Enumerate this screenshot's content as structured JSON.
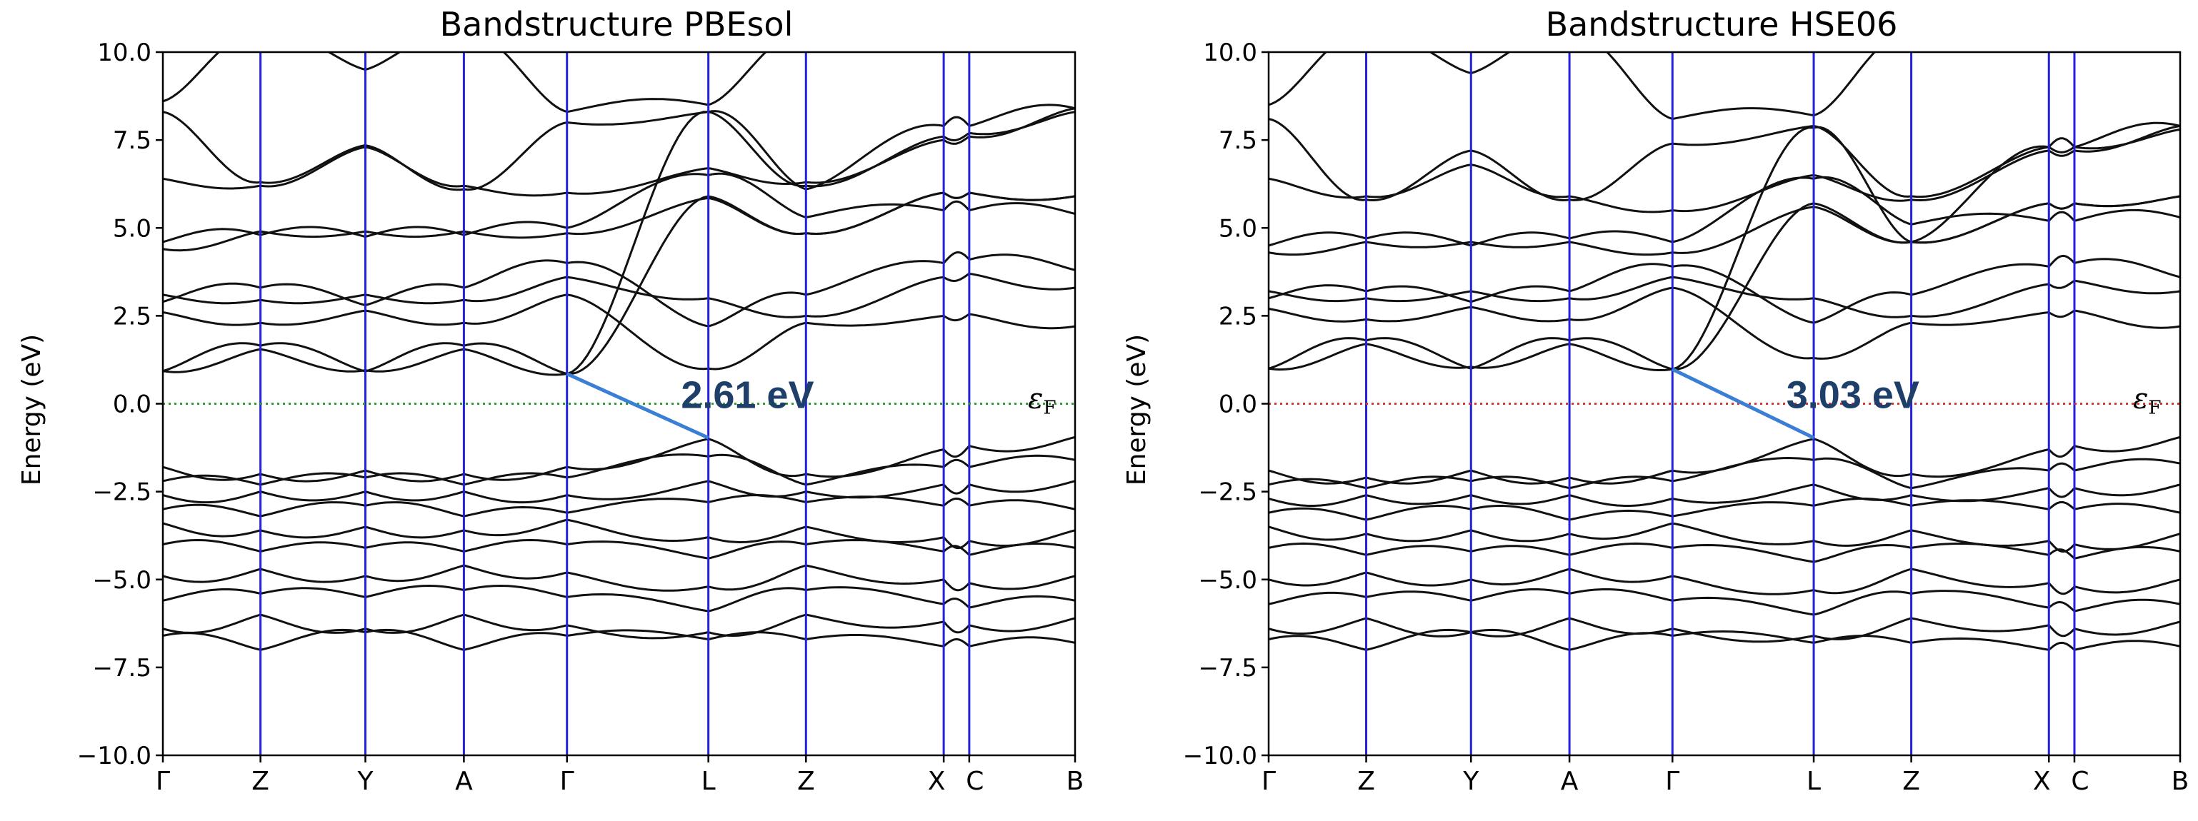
{
  "chart_data": [
    {
      "type": "line",
      "title": "Bandstructure PBEsol",
      "xlabel": "",
      "ylabel": "Energy (eV)",
      "ylim": [
        -10.0,
        10.0
      ],
      "yticks": [
        "−10.0",
        "−7.5",
        "−5.0",
        "−2.5",
        "0.0",
        "2.5",
        "5.0",
        "7.5",
        "10.0"
      ],
      "ytick_values": [
        -10,
        -7.5,
        -5,
        -2.5,
        0,
        2.5,
        5,
        7.5,
        10
      ],
      "kpath": [
        "Γ",
        "Z",
        "Y",
        "A",
        "Γ",
        "L",
        "Z",
        "X",
        "C",
        "B"
      ],
      "kpath_distance": [
        0,
        0.107,
        0.222,
        0.33,
        0.443,
        0.598,
        0.705,
        0.856,
        0.884,
        1.0
      ],
      "fermi_level": 0.0,
      "fermi_label": "ε",
      "fermi_subscript": "F",
      "fermi_line_color": "#2ca02c",
      "band_gap": {
        "label": "2.61 eV",
        "from_k": 0.443,
        "from_E": 0.85,
        "to_k": 0.598,
        "to_E": -0.97
      },
      "conduction_anchors": [
        [
          0.93,
          1.65,
          0.92,
          1.65,
          0.85,
          8.3,
          6.1,
          7.9,
          7.9,
          8.4
        ],
        [
          0.93,
          1.55,
          0.95,
          1.55,
          0.85,
          5.9,
          4.85,
          6.0,
          6.0,
          5.9
        ],
        [
          2.6,
          2.3,
          2.65,
          2.3,
          3.1,
          1.0,
          2.3,
          2.5,
          2.55,
          2.2
        ],
        [
          2.9,
          3.3,
          2.8,
          3.3,
          4.0,
          2.2,
          3.1,
          4.0,
          4.1,
          3.8
        ],
        [
          3.1,
          2.95,
          3.1,
          2.95,
          3.6,
          3.0,
          2.5,
          3.6,
          3.7,
          3.3
        ],
        [
          4.4,
          4.9,
          4.9,
          4.9,
          4.85,
          5.85,
          4.85,
          6.0,
          6.0,
          5.9
        ],
        [
          4.6,
          4.8,
          4.75,
          4.8,
          5.0,
          6.5,
          5.3,
          5.5,
          5.5,
          5.4
        ],
        [
          6.4,
          6.2,
          7.3,
          6.2,
          6.0,
          6.7,
          6.3,
          7.5,
          7.6,
          8.4
        ],
        [
          8.3,
          6.3,
          7.35,
          6.1,
          8.0,
          8.3,
          6.2,
          7.6,
          7.7,
          8.3
        ],
        [
          8.6,
          10.5,
          9.5,
          10.5,
          8.3,
          8.5,
          10.5,
          10.5,
          10.5,
          10.5
        ]
      ],
      "valence_anchors": [
        [
          -1.8,
          -2.0,
          -1.9,
          -2.0,
          -1.8,
          -1.0,
          -2.0,
          -1.3,
          -1.2,
          -0.95
        ],
        [
          -2.2,
          -2.3,
          -2.1,
          -2.3,
          -2.1,
          -1.5,
          -2.3,
          -1.8,
          -1.8,
          -1.6
        ],
        [
          -2.6,
          -2.5,
          -2.5,
          -2.5,
          -2.6,
          -2.2,
          -2.5,
          -2.3,
          -2.3,
          -2.2
        ],
        [
          -3.0,
          -3.2,
          -2.9,
          -3.2,
          -3.1,
          -2.8,
          -2.8,
          -2.9,
          -2.9,
          -3.0
        ],
        [
          -3.4,
          -3.6,
          -3.5,
          -3.6,
          -3.3,
          -3.8,
          -3.5,
          -3.8,
          -3.9,
          -3.6
        ],
        [
          -4.0,
          -4.2,
          -4.1,
          -4.2,
          -4.0,
          -4.4,
          -4.0,
          -4.2,
          -4.3,
          -4.1
        ],
        [
          -4.9,
          -4.7,
          -4.9,
          -4.6,
          -4.8,
          -5.2,
          -4.6,
          -5.0,
          -5.1,
          -4.9
        ],
        [
          -5.6,
          -5.4,
          -5.5,
          -5.3,
          -5.5,
          -5.9,
          -5.3,
          -5.7,
          -5.8,
          -5.6
        ],
        [
          -6.4,
          -6.0,
          -6.4,
          -6.0,
          -6.3,
          -6.5,
          -6.0,
          -6.2,
          -6.3,
          -6.1
        ],
        [
          -6.6,
          -7.0,
          -6.5,
          -7.0,
          -6.6,
          -6.7,
          -6.7,
          -6.9,
          -6.9,
          -6.8
        ]
      ]
    },
    {
      "type": "line",
      "title": "Bandstructure HSE06",
      "xlabel": "",
      "ylabel": "Energy (eV)",
      "ylim": [
        -10.0,
        10.0
      ],
      "yticks": [
        "−10.0",
        "−7.5",
        "−5.0",
        "−2.5",
        "0.0",
        "2.5",
        "5.0",
        "7.5",
        "10.0"
      ],
      "ytick_values": [
        -10,
        -7.5,
        -5,
        -2.5,
        0,
        2.5,
        5,
        7.5,
        10
      ],
      "kpath": [
        "Γ",
        "Z",
        "Y",
        "A",
        "Γ",
        "L",
        "Z",
        "X",
        "C",
        "B"
      ],
      "kpath_distance": [
        0,
        0.107,
        0.222,
        0.33,
        0.443,
        0.598,
        0.705,
        0.856,
        0.884,
        1.0
      ],
      "fermi_level": 0.0,
      "fermi_label": "ε",
      "fermi_subscript": "F",
      "fermi_line_color": "#e03030",
      "band_gap": {
        "label": "3.03 eV",
        "from_k": 0.443,
        "from_E": 0.98,
        "to_k": 0.598,
        "to_E": -0.97
      },
      "conduction_anchors": [
        [
          1.0,
          1.8,
          1.0,
          1.8,
          0.98,
          7.85,
          4.6,
          7.3,
          7.3,
          7.9
        ],
        [
          1.0,
          1.7,
          1.05,
          1.7,
          0.98,
          5.7,
          4.6,
          5.7,
          5.7,
          5.9
        ],
        [
          2.7,
          2.4,
          2.75,
          2.4,
          3.3,
          1.3,
          2.3,
          2.6,
          2.65,
          2.2
        ],
        [
          3.0,
          3.2,
          2.9,
          3.2,
          3.9,
          2.3,
          3.1,
          3.9,
          4.0,
          3.6
        ],
        [
          3.2,
          3.0,
          3.2,
          3.0,
          3.6,
          3.0,
          2.5,
          3.4,
          3.5,
          3.2
        ],
        [
          4.3,
          4.6,
          4.6,
          4.6,
          4.3,
          5.6,
          4.6,
          5.7,
          5.7,
          5.9
        ],
        [
          4.5,
          4.7,
          4.5,
          4.7,
          4.6,
          6.4,
          5.1,
          5.2,
          5.2,
          5.3
        ],
        [
          6.4,
          5.9,
          6.8,
          5.9,
          5.5,
          6.5,
          5.8,
          7.2,
          7.2,
          7.9
        ],
        [
          8.1,
          5.8,
          7.2,
          5.8,
          7.4,
          7.9,
          5.9,
          7.3,
          7.3,
          7.8
        ],
        [
          8.5,
          10.5,
          9.4,
          10.5,
          8.1,
          8.2,
          10.5,
          10.5,
          10.5,
          10.5
        ]
      ],
      "valence_anchors": [
        [
          -1.9,
          -2.1,
          -1.9,
          -2.1,
          -1.9,
          -1.0,
          -2.0,
          -1.3,
          -1.2,
          -0.95
        ],
        [
          -2.3,
          -2.4,
          -2.2,
          -2.4,
          -2.2,
          -1.6,
          -2.4,
          -1.9,
          -1.9,
          -1.7
        ],
        [
          -2.7,
          -2.6,
          -2.6,
          -2.6,
          -2.7,
          -2.3,
          -2.6,
          -2.4,
          -2.4,
          -2.3
        ],
        [
          -3.1,
          -3.3,
          -3.0,
          -3.3,
          -3.2,
          -2.9,
          -2.9,
          -3.0,
          -3.0,
          -3.1
        ],
        [
          -3.5,
          -3.7,
          -3.6,
          -3.7,
          -3.4,
          -3.9,
          -3.6,
          -3.9,
          -4.0,
          -3.7
        ],
        [
          -4.1,
          -4.3,
          -4.2,
          -4.3,
          -4.1,
          -4.5,
          -4.1,
          -4.3,
          -4.4,
          -4.2
        ],
        [
          -5.0,
          -4.8,
          -5.0,
          -4.7,
          -4.9,
          -5.3,
          -4.7,
          -5.1,
          -5.2,
          -5.0
        ],
        [
          -5.7,
          -5.5,
          -5.6,
          -5.4,
          -5.6,
          -6.0,
          -5.4,
          -5.8,
          -5.9,
          -5.7
        ],
        [
          -6.4,
          -6.1,
          -6.5,
          -6.1,
          -6.4,
          -6.6,
          -6.1,
          -6.3,
          -6.4,
          -6.2
        ],
        [
          -6.7,
          -7.0,
          -6.5,
          -7.0,
          -6.6,
          -6.8,
          -6.8,
          -7.0,
          -7.0,
          -6.9
        ]
      ]
    }
  ]
}
